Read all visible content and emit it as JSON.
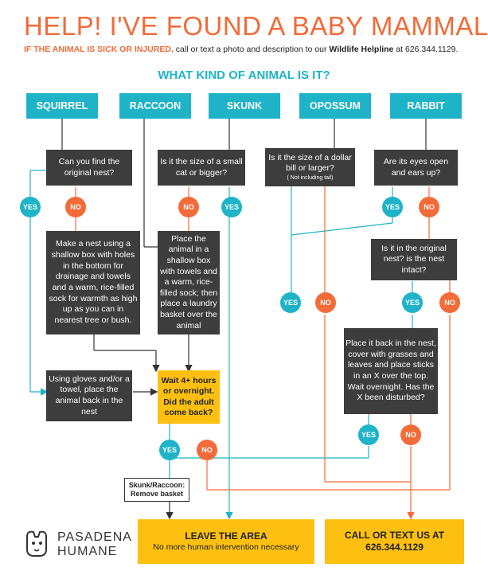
{
  "title": "HELP! I'VE FOUND A BABY MAMMAL",
  "subtitle": {
    "lead": "IF THE ANIMAL IS SICK OR INJURED,",
    "mid": " call or text a photo and description to our ",
    "helpline": "Wildlife Helpline",
    "end": " at 626.344.1129."
  },
  "question": "WHAT KIND OF ANIMAL IS IT?",
  "animals": [
    "SQUIRREL",
    "RACCOON",
    "SKUNK",
    "OPOSSUM",
    "RABBIT"
  ],
  "boxes": {
    "nest_find": "Can you find the original nest?",
    "cat_size": "Is it the size of a small cat or bigger?",
    "dollar_size": "Is it the size of a dollar bill or larger?",
    "dollar_note": "( Not including tail)",
    "eyes_open": "Are its eyes open and ears up?",
    "make_nest": "Make a nest using a shallow box with holes in the bottom for drainage and towels and a warm, rice-filled sock for warmth as high up as you can in nearest tree or bush.",
    "place_box": "Place the animal in a shallow box with towels and a warm, rice-filled sock; then place a laundry basket over the animal",
    "nest_intact": "Is it in the original nest? is the nest intact?",
    "place_back": "Place it back in the nest, cover with grasses and leaves and place sticks in an X over the top. Wait overnight. Has the X been disturbed?",
    "gloves": "Using gloves and/or a towel, place the animal back in the nest",
    "wait": "Wait 4+ hours or overnight. Did the adult come back?",
    "remove_basket": "Skunk/Raccoon: Remove basket"
  },
  "yes": "YES",
  "no": "NO",
  "leave": {
    "title": "LEAVE THE AREA",
    "sub": "No more human intervention necessary"
  },
  "call": {
    "title": "CALL OR TEXT US AT",
    "number": "626.344.1129"
  },
  "logo": {
    "line1": "PASADENA",
    "line2": "HUMANE"
  },
  "colors": {
    "teal": "#1fb3c8",
    "orange": "#f26b38",
    "dark": "#3d3d3d",
    "yellow": "#fdc010"
  }
}
